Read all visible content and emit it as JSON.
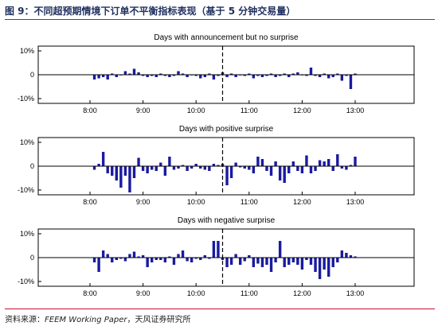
{
  "figure_title": "图 9：不同超预期情境下订单不平衡指标表现（基于 5 分钟交易量）",
  "source": {
    "label": "资料来源：",
    "paper": "FEEM Working Paper",
    "rest": "，天风证券研究所"
  },
  "colors": {
    "bar": "#1a1aa0",
    "axis": "#000000",
    "rule": "#c8102e",
    "title": "#1f2f5e"
  },
  "chart_data": [
    {
      "type": "bar",
      "title": "Days with announcement but no surprise",
      "xticks": [
        "8:00",
        "9:00",
        "10:00",
        "11:00",
        "12:00",
        "13:00"
      ],
      "yticks": [
        "10%",
        "0",
        "-10%"
      ],
      "ylim": [
        -12,
        12
      ],
      "announcement_time": "10:30",
      "x": [
        "8:05",
        "8:10",
        "8:15",
        "8:20",
        "8:25",
        "8:30",
        "8:35",
        "8:40",
        "8:45",
        "8:50",
        "8:55",
        "9:00",
        "9:05",
        "9:10",
        "9:15",
        "9:20",
        "9:25",
        "9:30",
        "9:35",
        "9:40",
        "9:45",
        "9:50",
        "9:55",
        "10:00",
        "10:05",
        "10:10",
        "10:15",
        "10:20",
        "10:25",
        "10:30",
        "10:35",
        "10:40",
        "10:45",
        "10:50",
        "10:55",
        "11:00",
        "11:05",
        "11:10",
        "11:15",
        "11:20",
        "11:25",
        "11:30",
        "11:35",
        "11:40",
        "11:45",
        "11:50",
        "11:55",
        "12:00",
        "12:05",
        "12:10",
        "12:15",
        "12:20",
        "12:25",
        "12:30",
        "12:35",
        "12:40",
        "12:45",
        "12:50",
        "12:55",
        "13:00"
      ],
      "values": [
        -2,
        -1.5,
        -1,
        -2,
        0.5,
        -1,
        0,
        1.5,
        0.5,
        2.5,
        1,
        -0.5,
        -1,
        -0.5,
        -1,
        0.5,
        -0.5,
        -1,
        -0.5,
        1.5,
        0.5,
        -1,
        0,
        -0.5,
        -1.5,
        -1,
        0.5,
        -2,
        -0.5,
        1,
        -1,
        0.5,
        -1,
        0,
        -0.5,
        0.5,
        -1.5,
        -0.5,
        -1,
        -0.5,
        0.5,
        -1,
        -0.5,
        0.5,
        -1,
        0.5,
        1,
        0,
        -0.5,
        3,
        -0.5,
        -1,
        0.5,
        -1.5,
        -1,
        0.5,
        -2.5,
        -0.5,
        -6,
        0.5
      ]
    },
    {
      "type": "bar",
      "title": "Days with positive surprise",
      "xticks": [
        "8:00",
        "9:00",
        "10:00",
        "11:00",
        "12:00",
        "13:00"
      ],
      "yticks": [
        "10%",
        "0",
        "-10%"
      ],
      "ylim": [
        -12,
        12
      ],
      "announcement_time": "10:30",
      "x": [
        "8:05",
        "8:10",
        "8:15",
        "8:20",
        "8:25",
        "8:30",
        "8:35",
        "8:40",
        "8:45",
        "8:50",
        "8:55",
        "9:00",
        "9:05",
        "9:10",
        "9:15",
        "9:20",
        "9:25",
        "9:30",
        "9:35",
        "9:40",
        "9:45",
        "9:50",
        "9:55",
        "10:00",
        "10:05",
        "10:10",
        "10:15",
        "10:20",
        "10:25",
        "10:30",
        "10:35",
        "10:40",
        "10:45",
        "10:50",
        "10:55",
        "11:00",
        "11:05",
        "11:10",
        "11:15",
        "11:20",
        "11:25",
        "11:30",
        "11:35",
        "11:40",
        "11:45",
        "11:50",
        "11:55",
        "12:00",
        "12:05",
        "12:10",
        "12:15",
        "12:20",
        "12:25",
        "12:30",
        "12:35",
        "12:40",
        "12:45",
        "12:50",
        "12:55",
        "13:00"
      ],
      "values": [
        -1.5,
        1,
        6,
        -3,
        -4,
        -6,
        -9,
        -4,
        -11,
        -5,
        3.5,
        -2,
        -3,
        -1.5,
        -2,
        1.5,
        -4,
        4,
        -1.5,
        -1,
        0.5,
        -2,
        -1,
        1,
        -1,
        -1.5,
        -2,
        1,
        0.5,
        1,
        -8,
        -5,
        1.5,
        -0.5,
        -1,
        -1.5,
        -3,
        4,
        3,
        -2,
        -4,
        2,
        -6,
        -7,
        -3,
        2,
        -2,
        -3,
        4.5,
        -3,
        -2,
        2.5,
        2,
        3,
        -2,
        5,
        -1,
        -1.5,
        0.5,
        4
      ]
    },
    {
      "type": "bar",
      "title": "Days with negative surprise",
      "xticks": [
        "8:00",
        "9:00",
        "10:00",
        "11:00",
        "12:00",
        "13:00"
      ],
      "yticks": [
        "10%",
        "0",
        "-10%"
      ],
      "ylim": [
        -12,
        12
      ],
      "announcement_time": "10:30",
      "x": [
        "8:05",
        "8:10",
        "8:15",
        "8:20",
        "8:25",
        "8:30",
        "8:35",
        "8:40",
        "8:45",
        "8:50",
        "8:55",
        "9:00",
        "9:05",
        "9:10",
        "9:15",
        "9:20",
        "9:25",
        "9:30",
        "9:35",
        "9:40",
        "9:45",
        "9:50",
        "9:55",
        "10:00",
        "10:05",
        "10:10",
        "10:15",
        "10:20",
        "10:25",
        "10:30",
        "10:35",
        "10:40",
        "10:45",
        "10:50",
        "10:55",
        "11:00",
        "11:05",
        "11:10",
        "11:15",
        "11:20",
        "11:25",
        "11:30",
        "11:35",
        "11:40",
        "11:45",
        "11:50",
        "11:55",
        "12:00",
        "12:05",
        "12:10",
        "12:15",
        "12:20",
        "12:25",
        "12:30",
        "12:35",
        "12:40",
        "12:45",
        "12:50",
        "12:55",
        "13:00"
      ],
      "values": [
        -2,
        -6,
        3,
        1.5,
        -2,
        -1,
        -0.5,
        -1.5,
        1.5,
        2.5,
        0.5,
        1,
        -4,
        -2,
        -1,
        -1,
        -2,
        0.5,
        -3,
        1.5,
        3,
        -1.5,
        -2,
        -0.5,
        -1,
        1,
        -0.5,
        7,
        7,
        -1,
        -4,
        -3,
        1.5,
        -3,
        -1.5,
        1,
        -4,
        -2.5,
        -4,
        -3,
        -6,
        -2,
        7,
        -4,
        -3,
        -2,
        -3,
        -5,
        -1,
        -3,
        -6,
        -9,
        -5,
        -8,
        -4,
        -2,
        3,
        2,
        1,
        0.5
      ]
    }
  ]
}
